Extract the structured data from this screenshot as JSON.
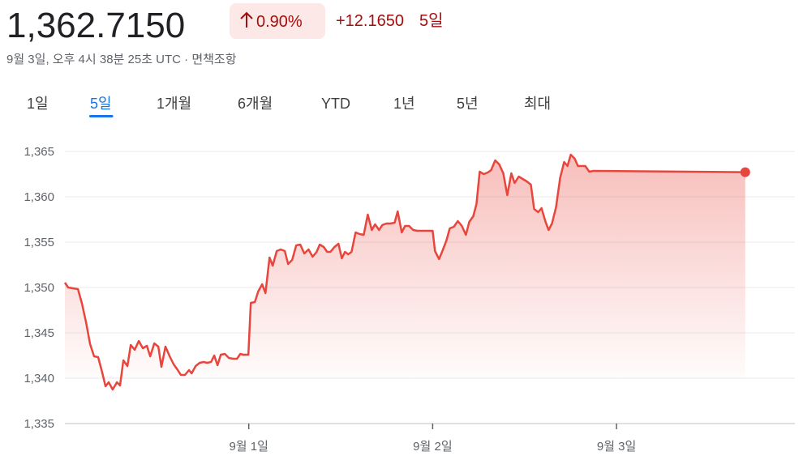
{
  "header": {
    "price": "1,362.7150",
    "change_percent": "0.90%",
    "change": "+12.1650",
    "period": "5일",
    "timestamp": "9월 3일, 오후 4시 38분 25초 UTC · 면책조항"
  },
  "tabs": [
    "1일",
    "5일",
    "1개월",
    "6개월",
    "YTD",
    "1년",
    "5년",
    "최대"
  ],
  "selected_tab": 1,
  "chart_data": {
    "type": "line",
    "color": "#e8453c",
    "grid": true,
    "xlim": [
      0,
      3.97
    ],
    "xticks": [
      {
        "value": 1,
        "label": "9월 1일"
      },
      {
        "value": 2,
        "label": "9월 2일"
      },
      {
        "value": 3,
        "label": "9월 3일"
      }
    ],
    "ylim": [
      1335,
      1365
    ],
    "yticks": [
      {
        "value": 1335,
        "label": "1,335"
      },
      {
        "value": 1340,
        "label": "1,340"
      },
      {
        "value": 1345,
        "label": "1,345"
      },
      {
        "value": 1350,
        "label": "1,350"
      },
      {
        "value": 1355,
        "label": "1,355"
      },
      {
        "value": 1360,
        "label": "1,360"
      },
      {
        "value": 1365,
        "label": "1,365"
      }
    ],
    "x": [
      0,
      0.018,
      0.071,
      0.093,
      0.115,
      0.137,
      0.159,
      0.181,
      0.203,
      0.221,
      0.238,
      0.26,
      0.283,
      0.3,
      0.318,
      0.34,
      0.358,
      0.38,
      0.402,
      0.424,
      0.446,
      0.464,
      0.486,
      0.508,
      0.525,
      0.547,
      0.57,
      0.592,
      0.614,
      0.631,
      0.653,
      0.675,
      0.689,
      0.711,
      0.733,
      0.755,
      0.773,
      0.795,
      0.812,
      0.83,
      0.848,
      0.87,
      0.892,
      0.914,
      0.936,
      0.954,
      0.971,
      0.998,
      1.011,
      1.033,
      1.051,
      1.073,
      1.091,
      1.113,
      1.13,
      1.152,
      1.174,
      1.196,
      1.214,
      1.236,
      1.258,
      1.28,
      1.302,
      1.325,
      1.347,
      1.369,
      1.386,
      1.408,
      1.426,
      1.444,
      1.466,
      1.488,
      1.506,
      1.523,
      1.541,
      1.559,
      1.581,
      1.603,
      1.625,
      1.647,
      1.669,
      1.687,
      1.709,
      1.726,
      1.748,
      1.77,
      1.793,
      1.81,
      1.832,
      1.85,
      1.872,
      1.894,
      1.916,
      1.938,
      1.96,
      1.982,
      2.0,
      2.013,
      2.035,
      2.053,
      2.075,
      2.093,
      2.115,
      2.137,
      2.159,
      2.181,
      2.199,
      2.221,
      2.238,
      2.256,
      2.278,
      2.3,
      2.318,
      2.34,
      2.362,
      2.384,
      2.406,
      2.428,
      2.446,
      2.468,
      2.49,
      2.512,
      2.534,
      2.552,
      2.574,
      2.592,
      2.614,
      2.631,
      2.649,
      2.671,
      2.693,
      2.715,
      2.733,
      2.751,
      2.773,
      2.79,
      2.812,
      2.83,
      2.852,
      2.874,
      3.7
    ],
    "values": [
      1350.54,
      1350.0,
      1349.82,
      1348.21,
      1346.16,
      1343.75,
      1342.41,
      1342.32,
      1340.63,
      1339.11,
      1339.55,
      1338.75,
      1339.55,
      1339.2,
      1341.96,
      1341.34,
      1343.66,
      1343.13,
      1344.11,
      1343.3,
      1343.57,
      1342.41,
      1343.84,
      1343.48,
      1341.25,
      1343.48,
      1342.41,
      1341.52,
      1340.89,
      1340.36,
      1340.36,
      1340.89,
      1340.54,
      1341.34,
      1341.7,
      1341.79,
      1341.7,
      1341.79,
      1342.5,
      1341.43,
      1342.59,
      1342.68,
      1342.23,
      1342.14,
      1342.14,
      1342.68,
      1342.59,
      1342.59,
      1348.3,
      1348.39,
      1349.55,
      1350.36,
      1349.38,
      1353.3,
      1352.41,
      1354.02,
      1354.2,
      1354.02,
      1352.59,
      1353.04,
      1354.64,
      1354.73,
      1353.75,
      1354.2,
      1353.39,
      1353.93,
      1354.73,
      1354.46,
      1353.93,
      1353.93,
      1354.46,
      1354.82,
      1353.21,
      1353.93,
      1353.66,
      1353.93,
      1356.07,
      1355.89,
      1355.8,
      1358.04,
      1356.34,
      1356.96,
      1356.34,
      1356.88,
      1357.05,
      1357.05,
      1357.14,
      1358.39,
      1356.07,
      1356.79,
      1356.79,
      1356.34,
      1356.25,
      1356.25,
      1356.25,
      1356.25,
      1356.25,
      1354.02,
      1353.13,
      1354.02,
      1355.18,
      1356.52,
      1356.7,
      1357.32,
      1356.79,
      1355.8,
      1357.23,
      1357.86,
      1359.2,
      1362.77,
      1362.5,
      1362.68,
      1362.95,
      1364.02,
      1363.57,
      1362.59,
      1360.18,
      1362.59,
      1361.52,
      1362.23,
      1361.96,
      1361.7,
      1361.34,
      1358.66,
      1358.3,
      1358.75,
      1357.23,
      1356.34,
      1357.05,
      1358.84,
      1362.05,
      1363.84,
      1363.39,
      1364.64,
      1364.2,
      1363.39,
      1363.39,
      1363.39,
      1362.77,
      1362.86,
      1362.715
    ]
  }
}
